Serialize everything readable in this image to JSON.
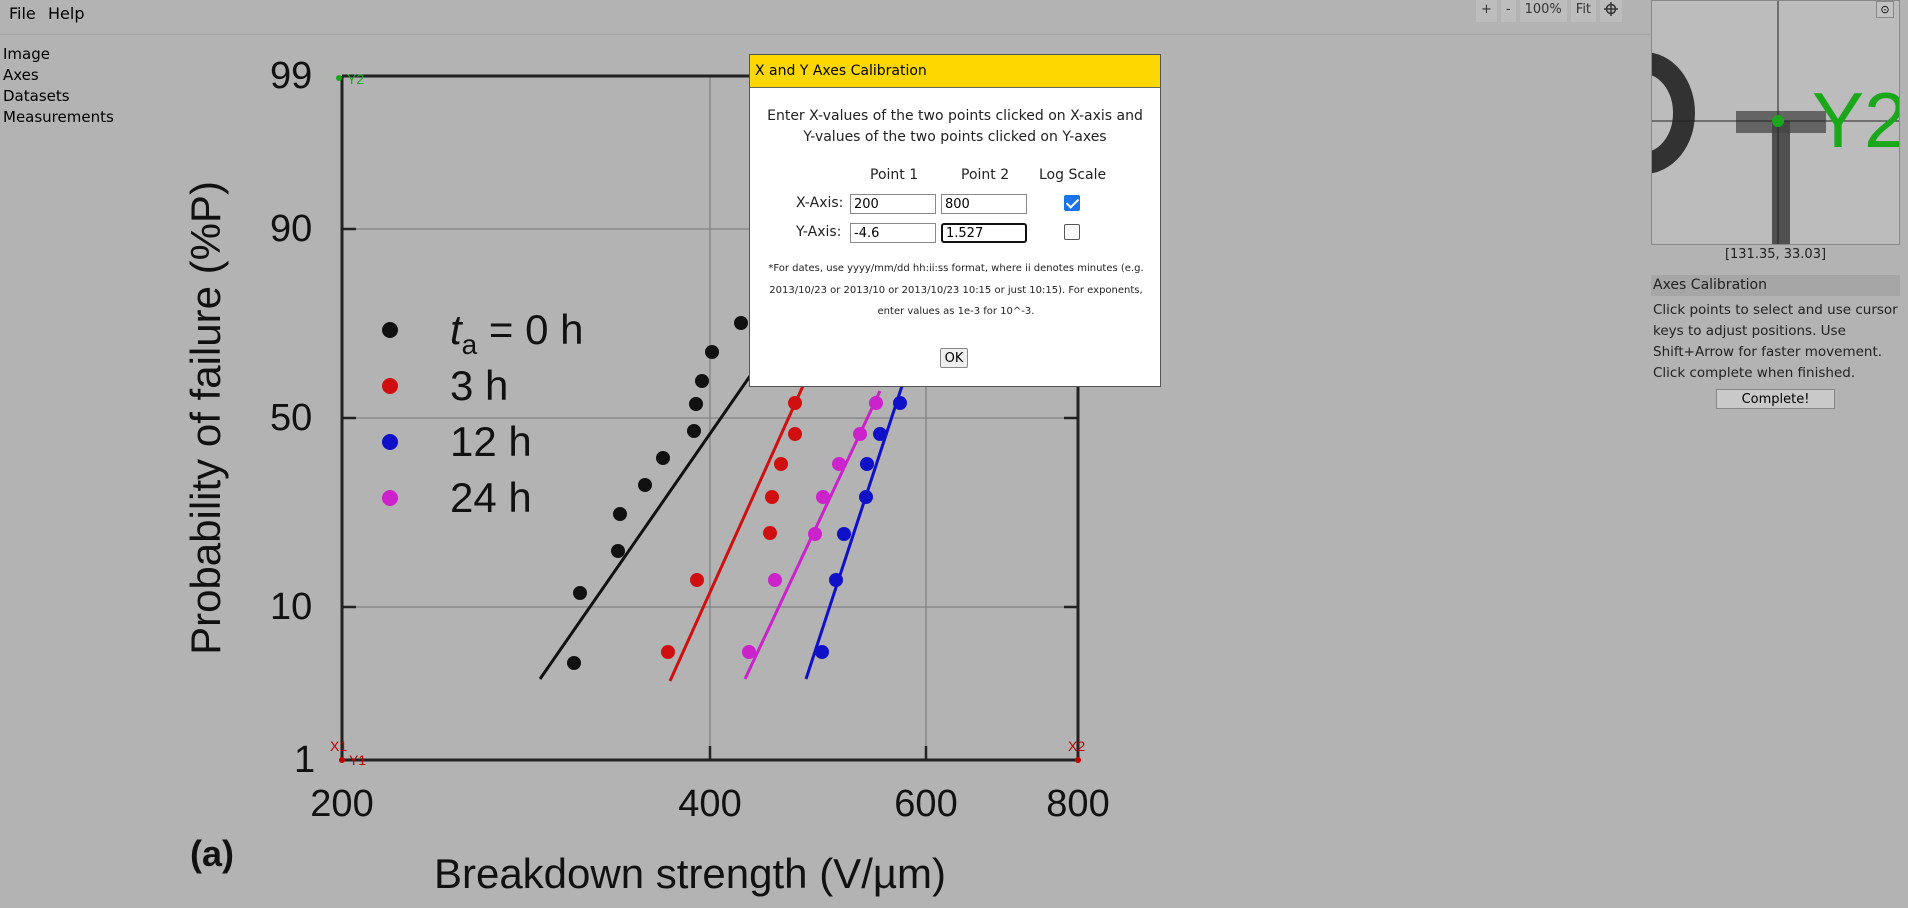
{
  "menu": {
    "file": "File",
    "help": "Help"
  },
  "toolbar": {
    "zoom_in": "+",
    "zoom_out": "-",
    "zoom_level": "100%",
    "fit": "Fit",
    "crosshair_icon": "crosshair-icon"
  },
  "sidebar": {
    "items": [
      "Image",
      "Axes",
      "Datasets",
      "Measurements"
    ]
  },
  "plot": {
    "y_ticks": [
      "99",
      "90",
      "50",
      "10",
      "1"
    ],
    "x_ticks": [
      "200",
      "400",
      "600",
      "800"
    ],
    "ylabel": "Probability of  failure (%P)",
    "xlabel": "Breakdown  strength (V/µm)",
    "panel_label": "(a)",
    "legend": [
      {
        "label_main": "t",
        "label_sub": "a",
        "label_rest": " = 0 h",
        "color": "#111111"
      },
      {
        "label": "3 h",
        "color": "#d01010"
      },
      {
        "label": "12 h",
        "color": "#1010c8"
      },
      {
        "label": "24 h",
        "color": "#cc22cc"
      }
    ],
    "markers": {
      "y2": "Y2",
      "y1": "Y1",
      "x1": "X1",
      "x2": "X2"
    }
  },
  "dialog": {
    "title": "X and Y Axes Calibration",
    "instruction_line1": "Enter X-values of the two points clicked on X-axis and",
    "instruction_line2": "Y-values of the two points clicked on Y-axes",
    "col_point1": "Point 1",
    "col_point2": "Point 2",
    "col_log": "Log Scale",
    "x_label": "X-Axis:",
    "y_label": "Y-Axis:",
    "x_point1": "200",
    "x_point2": "800",
    "x_log": true,
    "y_point1": "-4.6",
    "y_point2": "1.527",
    "y_log": false,
    "note_line1": "*For dates, use yyyy/mm/dd hh:ii:ss format, where ii denotes minutes (e.g.",
    "note_line2": "2013/10/23 or 2013/10 or 2013/10/23 10:15 or just 10:15). For exponents,",
    "note_line3": "enter values as 1e-3 for 10^-3.",
    "ok": "OK"
  },
  "right_panel": {
    "magnifier_label": "Y2",
    "cursor_coords": "[131.35, 33.03]",
    "title": "Axes Calibration",
    "help_line1": "Click points to select and use cursor",
    "help_line2": "keys to adjust positions. Use",
    "help_line3": "Shift+Arrow for faster movement.",
    "help_line4": "Click complete when finished.",
    "complete": "Complete!",
    "settings_icon": "⊙"
  }
}
